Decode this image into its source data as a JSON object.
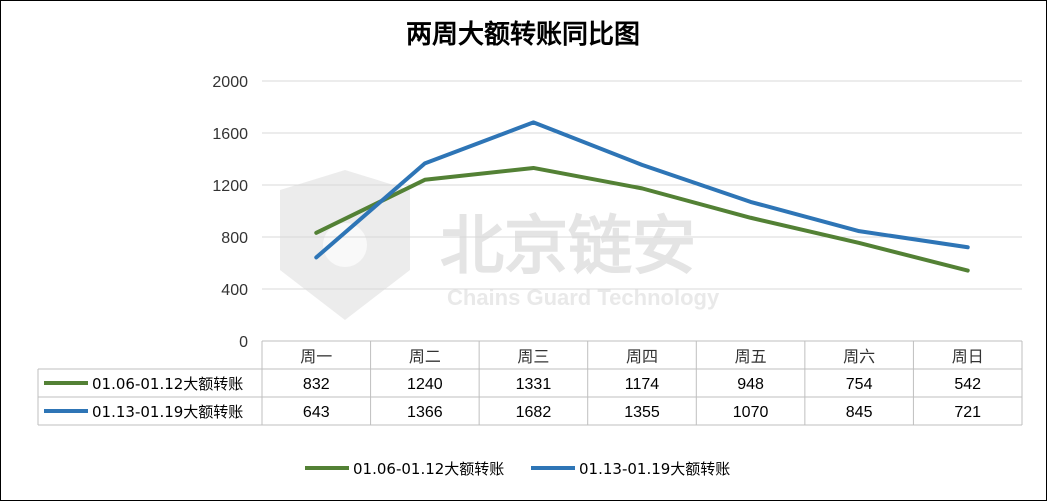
{
  "chart_data": {
    "type": "line",
    "title": "两周大额转账同比图",
    "categories": [
      "周一",
      "周二",
      "周三",
      "周四",
      "周五",
      "周六",
      "周日"
    ],
    "ylim": [
      0,
      2000
    ],
    "yticks": [
      0,
      400,
      800,
      1200,
      1600,
      2000
    ],
    "grid": true,
    "legend_position": "bottom",
    "series": [
      {
        "name": "01.06-01.12大额转账",
        "color": "#538135",
        "values": [
          832,
          1240,
          1331,
          1174,
          948,
          754,
          542
        ]
      },
      {
        "name": "01.13-01.19大额转账",
        "color": "#2e75b6",
        "values": [
          643,
          1366,
          1682,
          1355,
          1070,
          845,
          721
        ]
      }
    ]
  },
  "watermark": {
    "main": "北京链安",
    "sub": "Chains Guard Technology"
  }
}
